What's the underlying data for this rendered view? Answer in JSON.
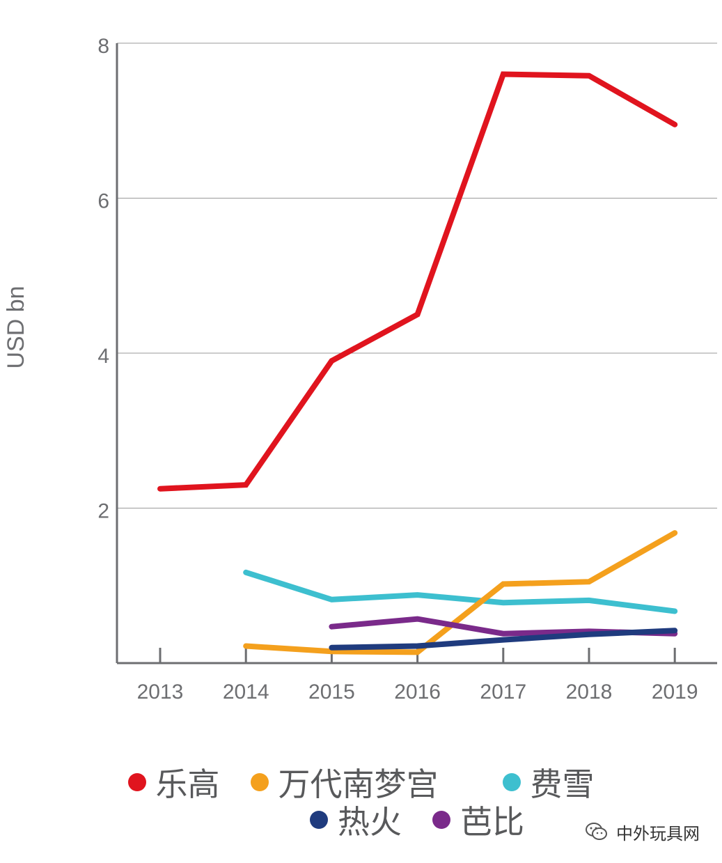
{
  "chart_data": {
    "type": "line",
    "ylabel": "USD bn",
    "ylim": [
      0,
      8
    ],
    "yticks": [
      2,
      4,
      6,
      8
    ],
    "categories": [
      "2013",
      "2014",
      "2015",
      "2016",
      "2017",
      "2018",
      "2019"
    ],
    "grid": true,
    "legend_position": "bottom",
    "series": [
      {
        "name": "乐高",
        "color": "#e0141e",
        "values": [
          2.25,
          2.3,
          3.9,
          4.5,
          7.6,
          7.58,
          6.95
        ]
      },
      {
        "name": "万代南梦宫",
        "color": "#f4a01d",
        "values": [
          null,
          0.22,
          0.15,
          0.14,
          1.02,
          1.05,
          1.68
        ]
      },
      {
        "name": "费雪",
        "color": "#3dbfcf",
        "values": [
          null,
          1.17,
          0.82,
          0.88,
          0.78,
          0.81,
          0.67
        ]
      },
      {
        "name": "热火",
        "color": "#1f3b7e",
        "values": [
          null,
          null,
          0.2,
          0.22,
          0.3,
          0.37,
          0.42
        ]
      },
      {
        "name": "芭比",
        "color": "#7a2a8a",
        "values": [
          null,
          null,
          0.47,
          0.57,
          0.38,
          0.41,
          0.38
        ]
      }
    ]
  },
  "legend": {
    "row1": [
      {
        "label": "乐高",
        "color": "#e0141e"
      },
      {
        "label": "万代南梦宫",
        "color": "#f4a01d"
      },
      {
        "label": "费雪",
        "color": "#3dbfcf"
      }
    ],
    "row2": [
      {
        "label": "热火",
        "color": "#1f3b7e"
      },
      {
        "label": "芭比",
        "color": "#7a2a8a"
      }
    ]
  },
  "watermark": {
    "text": "中外玩具网"
  }
}
